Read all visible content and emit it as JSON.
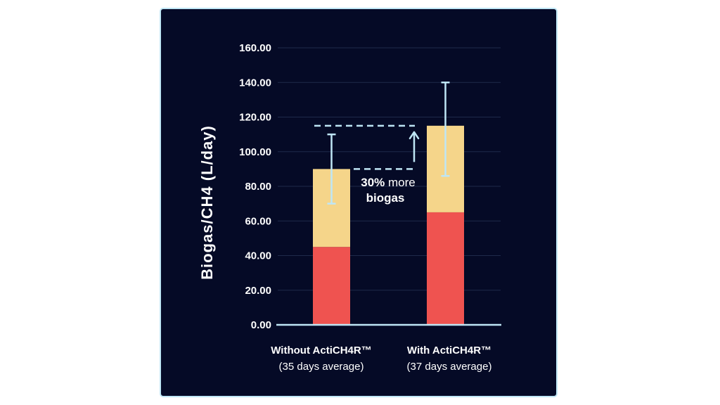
{
  "chart_data": {
    "type": "bar",
    "stacked": true,
    "ylabel": "Biogas/CH4 (L/day)",
    "ylim": [
      0,
      160
    ],
    "yticks": [
      "0.00",
      "20.00",
      "40.00",
      "60.00",
      "80.00",
      "100.00",
      "120.00",
      "140.00",
      "160.00"
    ],
    "grid": true,
    "categories": [
      {
        "name": "Without ActiCH4R™",
        "sub": "(35 days average)"
      },
      {
        "name": "With ActiCH4R™",
        "sub": "(37 days average)"
      }
    ],
    "series": [
      {
        "color": "#ef5350",
        "values": [
          45,
          65
        ]
      },
      {
        "color": "#f5d58a",
        "values": [
          45,
          50
        ]
      }
    ],
    "totals": [
      90,
      115
    ],
    "error_bars": [
      {
        "low": 70,
        "high": 110
      },
      {
        "low": 86,
        "high": 140
      }
    ],
    "annotation": {
      "bold": "30%",
      "regular": "more",
      "line2": "biogas"
    },
    "colors": {
      "background": "#050a26",
      "border": "#bfe6f5",
      "axis": "#bfe6f5",
      "grid": "#1f2a4a",
      "whisker": "#bfe6f5"
    }
  }
}
